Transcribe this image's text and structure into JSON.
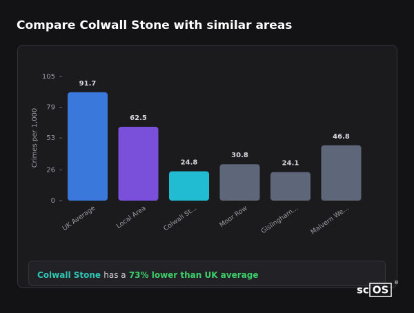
{
  "header": {
    "title": "Compare Colwall Stone with similar areas"
  },
  "chart_data": {
    "type": "bar",
    "y_label": "Crimes per 1,000",
    "categories": [
      "UK Average",
      "Local Area",
      "Colwall St...",
      "Moor Row",
      "Gislingham...",
      "Malvern We..."
    ],
    "values": [
      91.7,
      62.5,
      24.8,
      30.8,
      24.1,
      46.8
    ],
    "colors": [
      "#3a78dc",
      "#7a4fd9",
      "#22bcd2",
      "#5d6779",
      "#5d6779",
      "#5d6779"
    ],
    "ylim": [
      0,
      105
    ],
    "yticks": [
      0,
      26,
      53,
      79,
      105
    ],
    "grid": false
  },
  "note": {
    "place": "Colwall Stone",
    "text": "has a",
    "highlight": "73% lower than UK average"
  },
  "logo": {
    "left": "sc",
    "boxed": "OS",
    "mark": "®"
  }
}
